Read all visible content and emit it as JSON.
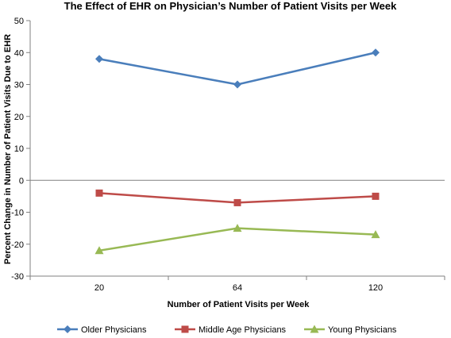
{
  "chart_data": {
    "type": "line",
    "title": "The Effect of EHR on Physician’s Number of Patient Visits per Week",
    "xlabel": "Number of Patient Visits per Week",
    "ylabel": "Percent Change in Number of Patient Visits Due to EHR",
    "categories": [
      "20",
      "64",
      "120"
    ],
    "ylim": [
      -30,
      50
    ],
    "yticks": [
      -30,
      -20,
      -10,
      0,
      10,
      20,
      30,
      40,
      50
    ],
    "ytick_labels": [
      "-30",
      "-20",
      "-10",
      "0",
      "10",
      "20",
      "30",
      "40",
      "50"
    ],
    "grid": false,
    "legend_position": "bottom",
    "series": [
      {
        "name": "Older Physicians",
        "values": [
          38,
          30,
          40
        ],
        "color": "#4a7ebb",
        "marker": "diamond"
      },
      {
        "name": "Middle Age Physicians",
        "values": [
          -4,
          -7,
          -5
        ],
        "color": "#be4b48",
        "marker": "square"
      },
      {
        "name": "Young Physicians",
        "values": [
          -22,
          -15,
          -17
        ],
        "color": "#98b954",
        "marker": "triangle"
      }
    ]
  }
}
